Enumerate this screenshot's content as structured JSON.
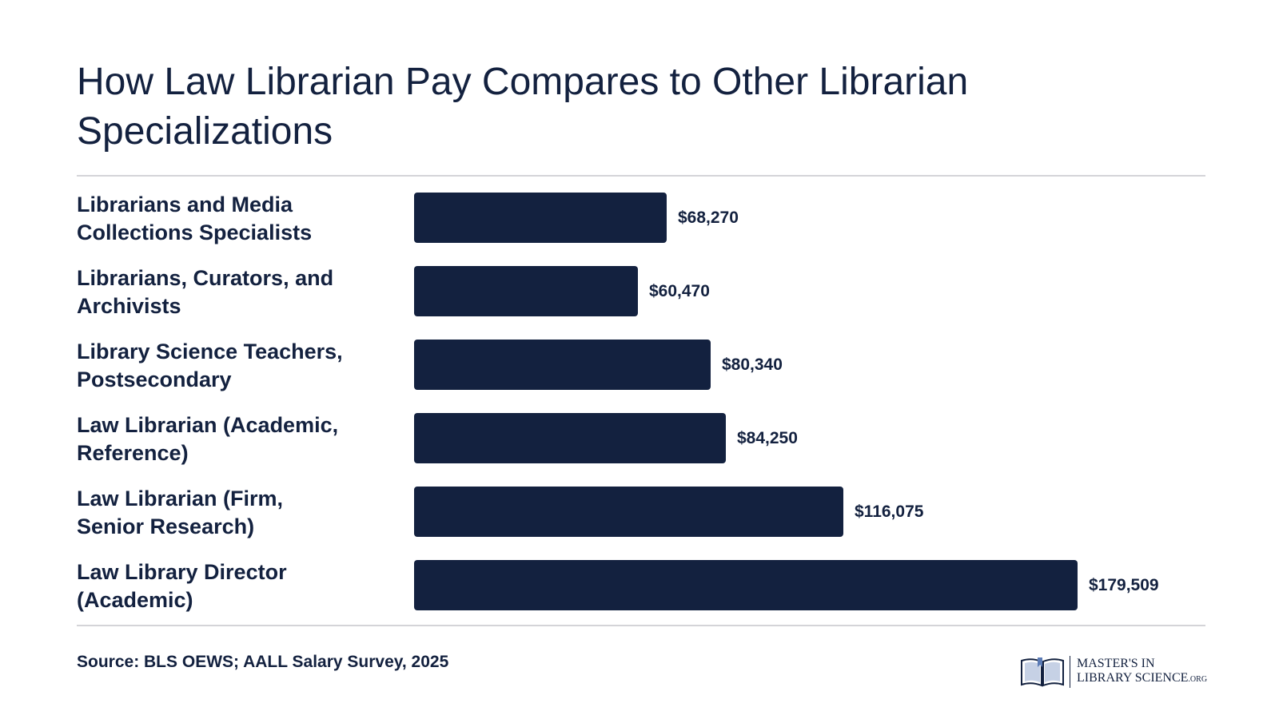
{
  "chart_data": {
    "type": "bar",
    "orientation": "horizontal",
    "title": "How Law Librarian Pay Compares to Other Librarian Specializations",
    "xlabel": "",
    "ylabel": "",
    "categories": [
      "Librarians and Media Collections Specialists",
      "Librarians, Curators, and Archivists",
      "Library Science Teachers, Postsecondary",
      "Law Librarian (Academic, Reference)",
      "Law Librarian (Firm, Senior Research)",
      "Law Library Director (Academic)"
    ],
    "category_lines": [
      [
        "Librarians and Media",
        "Collections Specialists"
      ],
      [
        "Librarians, Curators, and",
        "Archivists"
      ],
      [
        "Library Science Teachers,",
        "Postsecondary"
      ],
      [
        "Law Librarian (Academic,",
        "Reference)"
      ],
      [
        "Law Librarian (Firm,",
        "Senior Research)"
      ],
      [
        "Law Library Director",
        "(Academic)"
      ]
    ],
    "values": [
      68270,
      60470,
      80340,
      84250,
      116075,
      179509
    ],
    "value_labels": [
      "$68,270",
      "$60,470",
      "$80,340",
      "$84,250",
      "$116,075",
      "$179,509"
    ],
    "xlim": [
      0,
      179509
    ],
    "grid": false,
    "legend": "none",
    "bar_color": "#13213f"
  },
  "footer": {
    "source": "Source: BLS OEWS; AALL Salary Survey, 2025"
  },
  "logo": {
    "line1": "MASTER'S IN",
    "line2": "LIBRARY SCIENCE",
    "suffix": ".ORG",
    "icon": "open-book-icon"
  },
  "colors": {
    "text": "#13213f",
    "divider": "#d4d4d8"
  }
}
